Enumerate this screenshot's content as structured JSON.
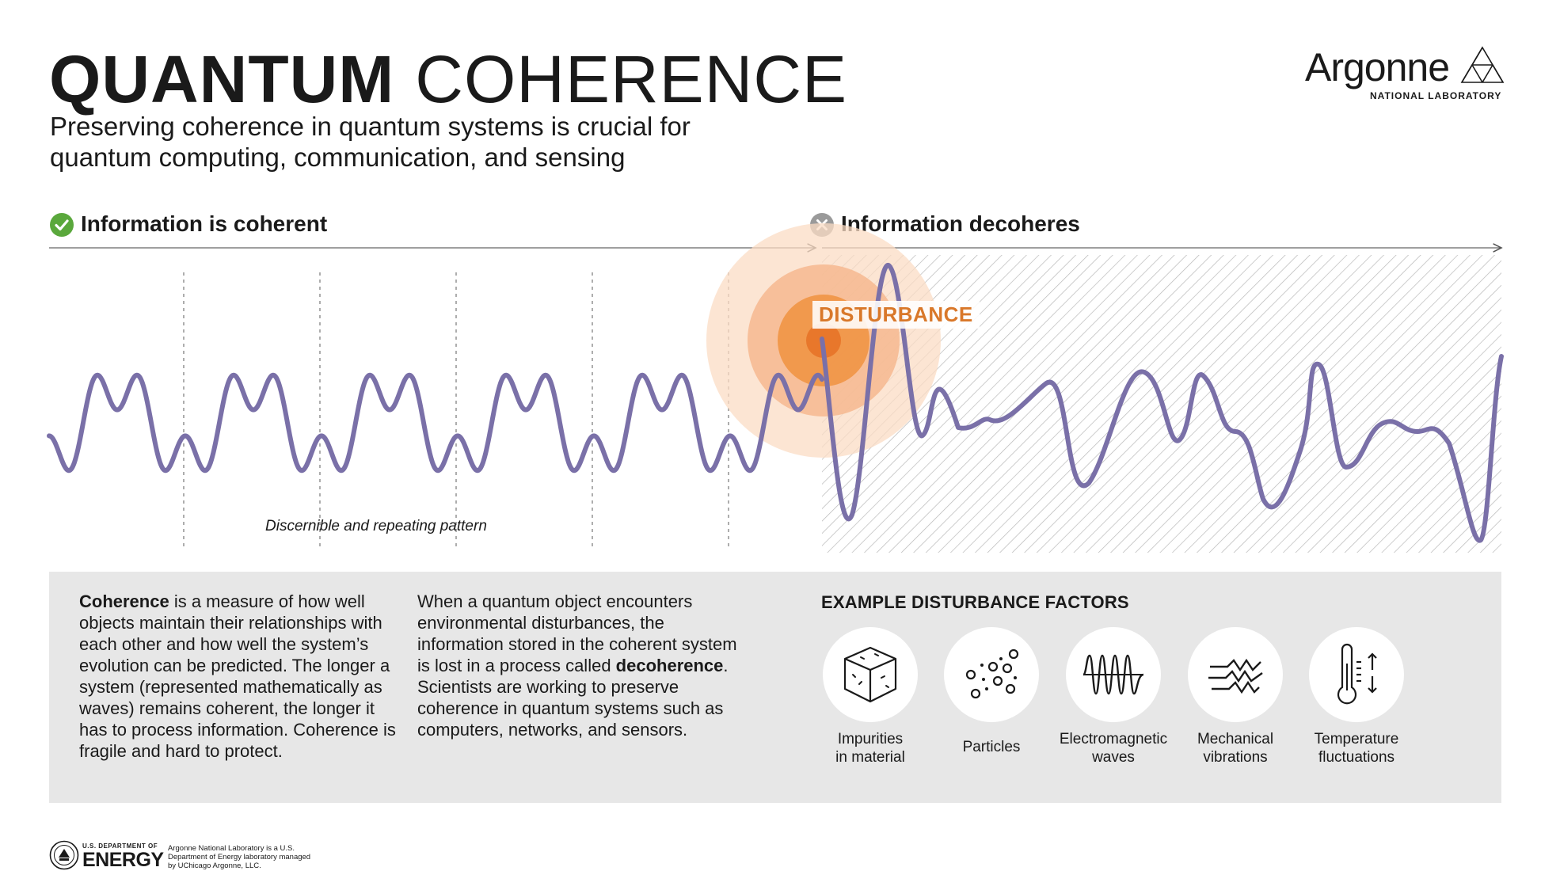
{
  "title": {
    "bold": "QUANTUM",
    "light": "COHERENCE"
  },
  "subtitle": "Preserving coherence in quantum systems is crucial for quantum computing, communication, and sensing",
  "logo": {
    "name": "Argonne",
    "sub": "NATIONAL LABORATORY",
    "icon": "argonne-triangle-icon"
  },
  "sections": {
    "coherent": {
      "label": "Information is coherent",
      "icon": "check-circle-icon"
    },
    "decoheres": {
      "label": "Information decoheres",
      "icon": "x-circle-icon"
    }
  },
  "wave": {
    "caption": "Discernible and repeating pattern",
    "disturbance_label": "DISTURBANCE"
  },
  "colors": {
    "wave": "#7a70a8",
    "check": "#5aa83c",
    "x": "#9a9a9a",
    "disturbance": "#d9782a",
    "panel": "#e7e7e7"
  },
  "paragraphs": {
    "p1": {
      "bold": "Coherence",
      "text": " is a measure of how well objects maintain their relationships with each other and how well the system’s evolution can be predicted. The longer a system (represented mathematically as waves) remains coherent, the longer it has to process information. Coherence is fragile and hard to protect."
    },
    "p2": {
      "pre": "When a quantum object encounters environmental disturbances, the information stored in the coherent system is lost in a process called ",
      "bold": "decoherence",
      "post": ". Scientists are working to preserve coherence in quantum systems such as computers, networks, and sensors."
    }
  },
  "factors": {
    "title": "EXAMPLE DISTURBANCE FACTORS",
    "items": [
      {
        "line1": "Impurities",
        "line2": "in material",
        "icon": "cube-impurities-icon"
      },
      {
        "line1": "Particles",
        "line2": "",
        "icon": "particles-icon"
      },
      {
        "line1": "Electromagnetic",
        "line2": "waves",
        "icon": "em-waves-icon"
      },
      {
        "line1": "Mechanical",
        "line2": "vibrations",
        "icon": "vibration-icon"
      },
      {
        "line1": "Temperature",
        "line2": "fluctuations",
        "icon": "thermometer-icon"
      }
    ]
  },
  "footer": {
    "doe_small": "U.S. DEPARTMENT OF",
    "doe_big": "ENERGY",
    "note": "Argonne National Laboratory is a U.S. Department of Energy laboratory managed by UChicago Argonne, LLC."
  }
}
